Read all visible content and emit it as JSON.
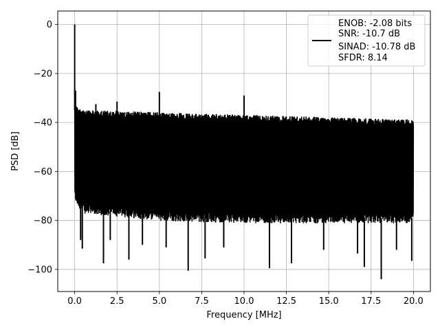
{
  "chart_data": {
    "type": "line",
    "xlabel": "Frequency [MHz]",
    "ylabel": "PSD [dB]",
    "xlim": [
      -1.0,
      21.0
    ],
    "ylim": [
      -109.0,
      5.5
    ],
    "x_ticks": [
      0.0,
      2.5,
      5.0,
      7.5,
      10.0,
      12.5,
      15.0,
      17.5,
      20.0
    ],
    "x_tick_labels": [
      "0.0",
      "2.5",
      "5.0",
      "7.5",
      "10.0",
      "12.5",
      "15.0",
      "17.5",
      "20.0"
    ],
    "y_ticks": [
      0,
      -20,
      -40,
      -60,
      -80,
      -100
    ],
    "y_tick_labels": [
      "0",
      "−20",
      "−40",
      "−60",
      "−80",
      "−100"
    ],
    "grid": true,
    "legend": {
      "placement": "top-right",
      "lines": [
        "ENOB: -2.08 bits",
        "SNR: -10.7 dB",
        "SINAD: -10.78 dB",
        "SFDR: 8.14"
      ]
    },
    "series": [
      {
        "color": "#000000",
        "noise_floor": {
          "x_range": [
            0.0,
            20.0
          ],
          "upper_envelope_db": [
            [
              0.0,
              -33
            ],
            [
              0.5,
              -35
            ],
            [
              5.0,
              -36
            ],
            [
              10.0,
              -37
            ],
            [
              15.0,
              -38
            ],
            [
              20.0,
              -39
            ]
          ],
          "lower_envelope_db": [
            [
              0.0,
              -72
            ],
            [
              0.5,
              -77
            ],
            [
              5.0,
              -80
            ],
            [
              10.0,
              -81
            ],
            [
              15.0,
              -81
            ],
            [
              20.0,
              -81
            ]
          ]
        },
        "peaks": [
          {
            "x": 0.0,
            "y": 0.0
          },
          {
            "x": 0.05,
            "y": -27.0
          },
          {
            "x": 1.25,
            "y": -32.5
          },
          {
            "x": 2.5,
            "y": -31.5
          },
          {
            "x": 5.0,
            "y": -27.5
          },
          {
            "x": 10.0,
            "y": -29.0
          }
        ],
        "dips": [
          {
            "x": 0.35,
            "y": -88.0
          },
          {
            "x": 0.45,
            "y": -91.5
          },
          {
            "x": 1.7,
            "y": -97.5
          },
          {
            "x": 2.1,
            "y": -88.0
          },
          {
            "x": 3.2,
            "y": -96.0
          },
          {
            "x": 4.0,
            "y": -90.0
          },
          {
            "x": 5.4,
            "y": -91.0
          },
          {
            "x": 6.7,
            "y": -100.5
          },
          {
            "x": 7.7,
            "y": -95.5
          },
          {
            "x": 8.8,
            "y": -91.0
          },
          {
            "x": 11.5,
            "y": -99.5
          },
          {
            "x": 12.8,
            "y": -97.5
          },
          {
            "x": 14.7,
            "y": -92.0
          },
          {
            "x": 16.7,
            "y": -93.5
          },
          {
            "x": 17.1,
            "y": -99.0
          },
          {
            "x": 18.1,
            "y": -104.0
          },
          {
            "x": 19.0,
            "y": -92.0
          },
          {
            "x": 19.9,
            "y": -96.5
          }
        ]
      }
    ]
  }
}
